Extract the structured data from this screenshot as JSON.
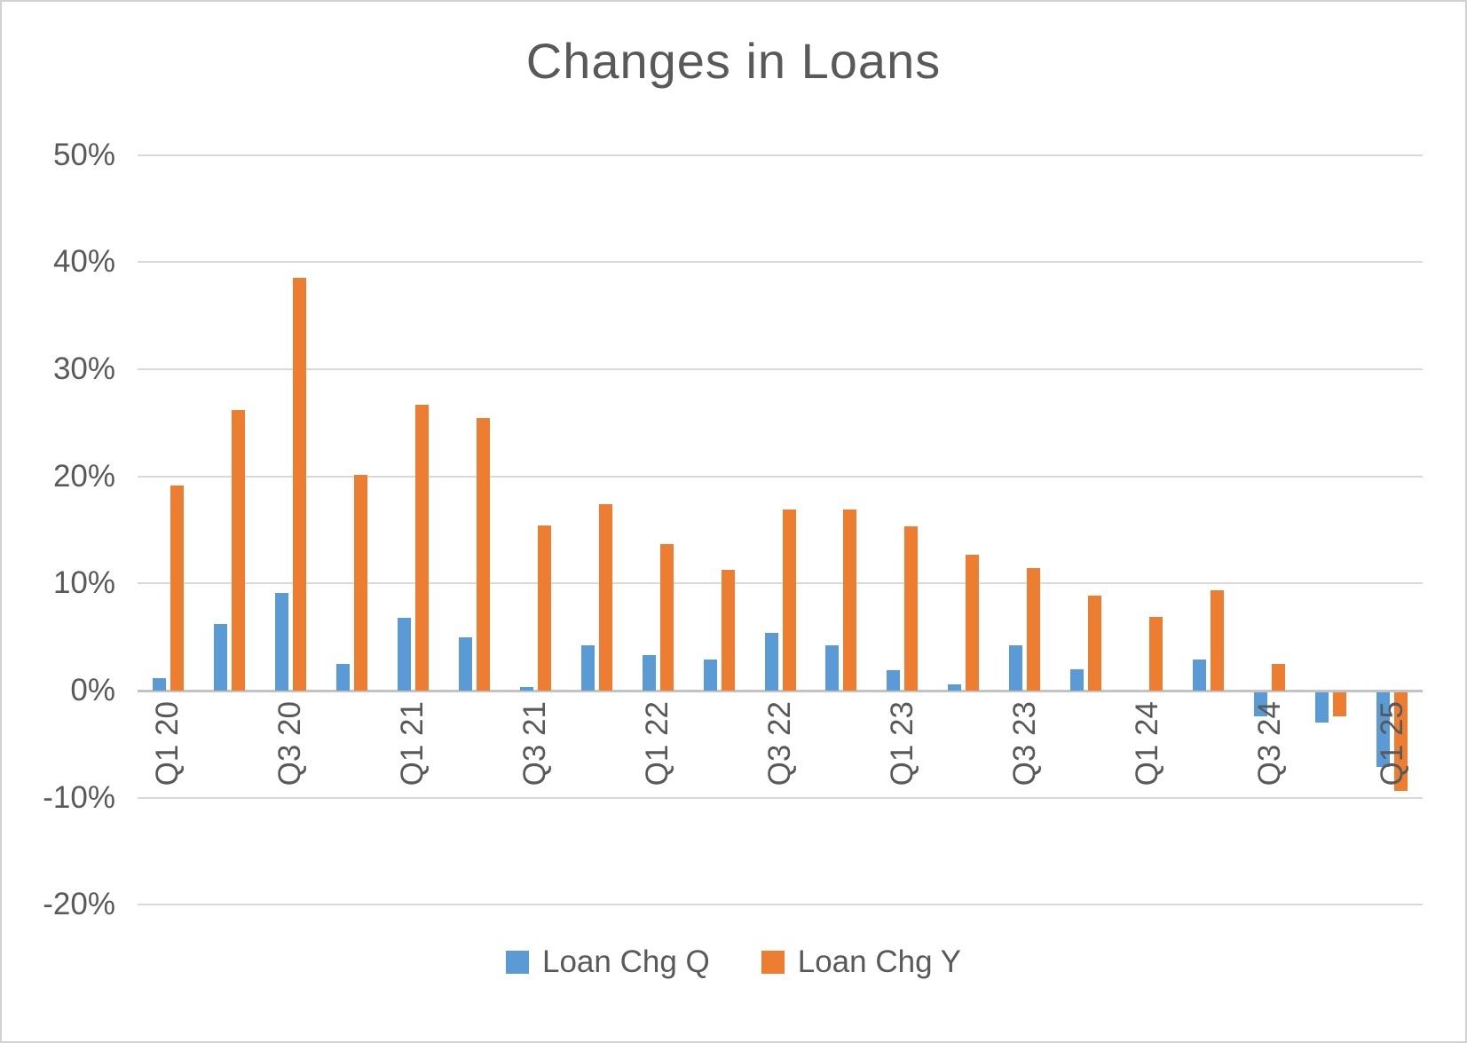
{
  "chart_data": {
    "type": "bar",
    "title": "Changes in Loans",
    "categories": [
      "Q1 20",
      "Q2 20",
      "Q3 20",
      "Q4 20",
      "Q1 21",
      "Q2 21",
      "Q3 21",
      "Q4 21",
      "Q1 22",
      "Q2 22",
      "Q3 22",
      "Q4 22",
      "Q1 23",
      "Q2 23",
      "Q3 23",
      "Q4 23",
      "Q1 24",
      "Q2 24",
      "Q3 24",
      "Q4 24",
      "Q1 25"
    ],
    "x_tick_labels_visible": [
      "Q1 20",
      "Q3 20",
      "Q1 21",
      "Q3 21",
      "Q1 22",
      "Q3 22",
      "Q1 23",
      "Q3 23",
      "Q1 24",
      "Q3 24",
      "Q1 25"
    ],
    "x_label_every": 2,
    "series": [
      {
        "name": "Loan Chg Q",
        "color": "#5B9BD5",
        "values": [
          1.2,
          6.2,
          9.1,
          2.5,
          6.8,
          5.0,
          0.3,
          4.2,
          3.3,
          2.9,
          5.4,
          4.2,
          1.9,
          0.6,
          4.2,
          2.0,
          0.0,
          2.9,
          -2.2,
          -2.8,
          -7.0
        ]
      },
      {
        "name": "Loan Chg Y",
        "color": "#ED7D31",
        "values": [
          19.1,
          26.2,
          38.5,
          20.1,
          26.7,
          25.4,
          15.4,
          17.4,
          13.7,
          11.3,
          16.9,
          16.9,
          15.3,
          12.7,
          11.4,
          8.9,
          6.9,
          9.4,
          2.5,
          -2.2,
          -9.2
        ]
      }
    ],
    "yticks": [
      50,
      40,
      30,
      20,
      10,
      0,
      -10,
      -20
    ],
    "ytick_labels": [
      "50%",
      "40%",
      "30%",
      "20%",
      "10%",
      "0%",
      "-10%",
      "-20%"
    ],
    "ylim": [
      -20,
      50
    ],
    "y_unit": "%",
    "grid": true,
    "legend_position": "bottom",
    "colors": {
      "series_q": "#5B9BD5",
      "series_y": "#ED7D31",
      "text": "#595959",
      "gridline": "#D9D9D9",
      "axis_line": "#C3C3C3",
      "background": "#FFFFFF",
      "border": "#D2D2D2"
    }
  }
}
